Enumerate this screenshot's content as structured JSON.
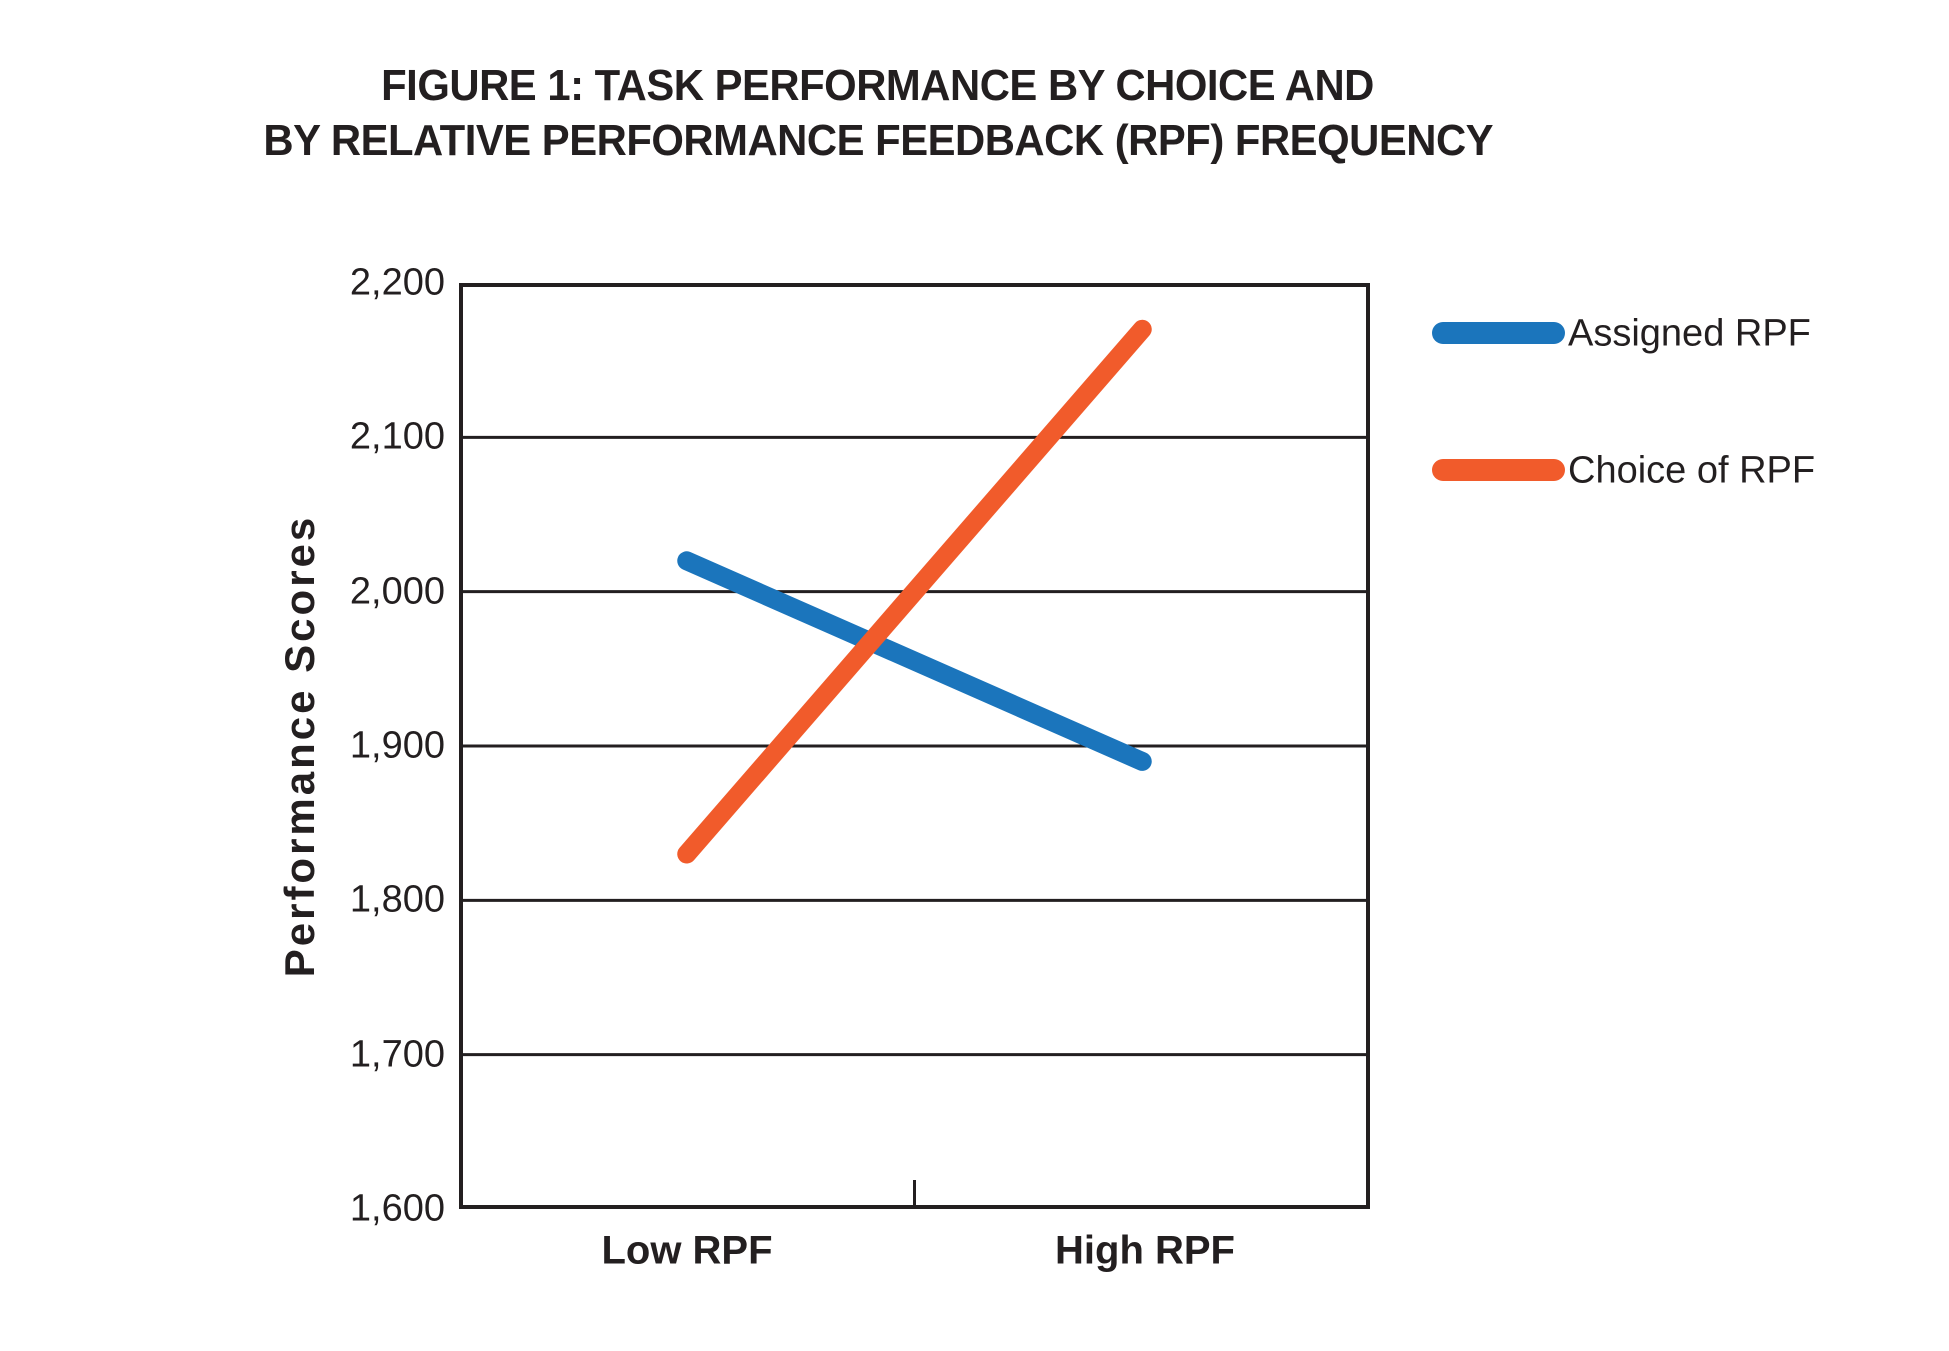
{
  "title": {
    "line1": "FIGURE 1: TASK PERFORMANCE BY CHOICE AND",
    "line2": "BY RELATIVE PERFORMANCE FEEDBACK (RPF) FREQUENCY"
  },
  "chart_data": {
    "type": "line",
    "title": "FIGURE 1: TASK PERFORMANCE BY CHOICE AND BY RELATIVE PERFORMANCE FEEDBACK (RPF) FREQUENCY",
    "categories": [
      "Low RPF",
      "High RPF"
    ],
    "series": [
      {
        "name": "Assigned RPF",
        "color": "#1B75BC",
        "values": [
          2020,
          1890
        ]
      },
      {
        "name": "Choice of RPF",
        "color": "#F15B2B",
        "values": [
          1830,
          2170
        ]
      }
    ],
    "xlabel": "",
    "ylabel": "Performance Scores",
    "ylim": [
      1600,
      2200
    ],
    "ytick_step": 100,
    "ytick_labels": [
      "2,200",
      "2,100",
      "2,000",
      "1,900",
      "1,800",
      "1,700",
      "1,600"
    ],
    "grid": "horizontal",
    "legend_position": "right",
    "line_width": 19,
    "axis_color": "#231F20",
    "background": "#FFFFFF"
  }
}
